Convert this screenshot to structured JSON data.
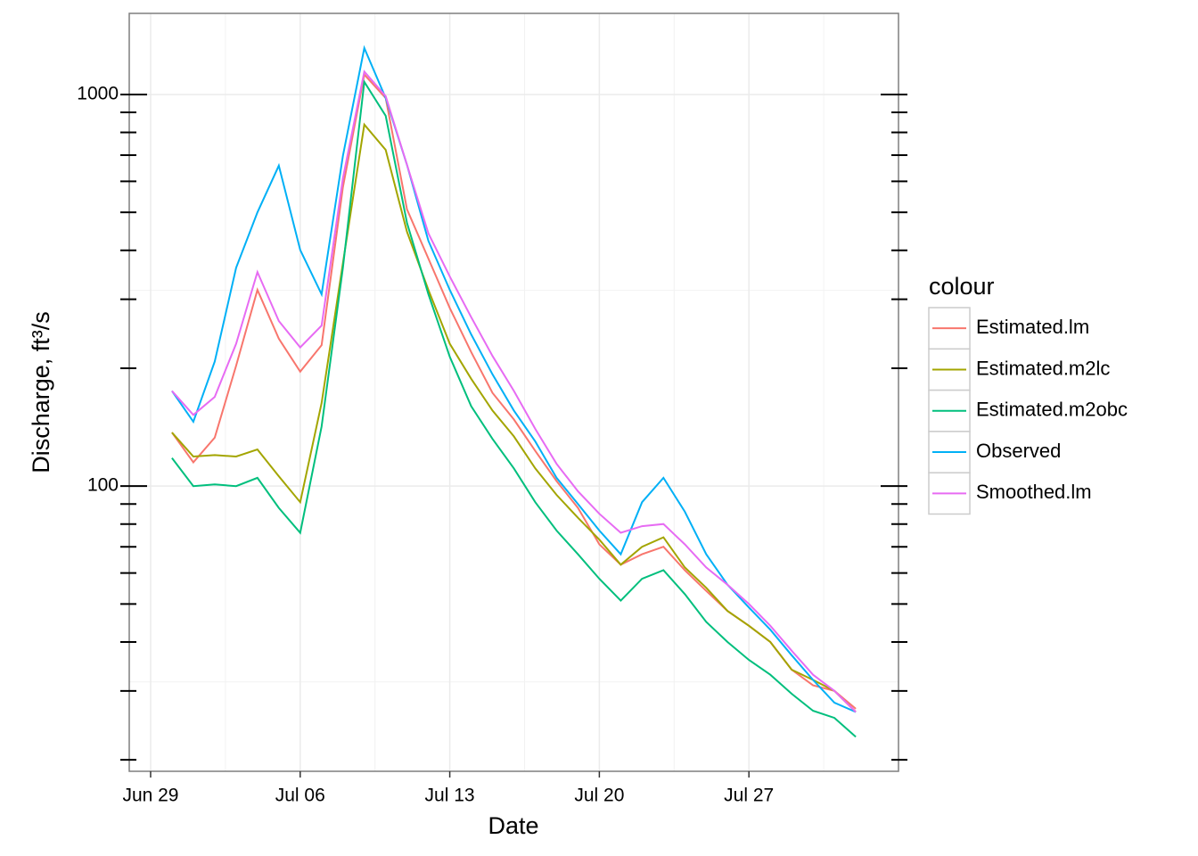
{
  "chart_data": {
    "type": "line",
    "xlabel": "Date",
    "ylabel": "Discharge, ft³/s",
    "legend_title": "colour",
    "legend_position": "right",
    "log_y": true,
    "grid": true,
    "x": [
      "Jun 30",
      "Jul 01",
      "Jul 02",
      "Jul 03",
      "Jul 04",
      "Jul 05",
      "Jul 06",
      "Jul 07",
      "Jul 08",
      "Jul 09",
      "Jul 10",
      "Jul 11",
      "Jul 12",
      "Jul 13",
      "Jul 14",
      "Jul 15",
      "Jul 16",
      "Jul 17",
      "Jul 18",
      "Jul 19",
      "Jul 20",
      "Jul 21",
      "Jul 22",
      "Jul 23",
      "Jul 24",
      "Jul 25",
      "Jul 26",
      "Jul 27",
      "Jul 28",
      "Jul 29",
      "Jul 30",
      "Jul 31",
      "Aug 01"
    ],
    "xlim": [
      "Jun 28",
      "Aug 03"
    ],
    "xticks": [
      "Jun 29",
      "Jul 06",
      "Jul 13",
      "Jul 20",
      "Jul 27"
    ],
    "ylim": [
      18.7,
      1611
    ],
    "yticks": [
      100,
      1000
    ],
    "yminor_ticks": [
      20,
      30,
      40,
      50,
      60,
      70,
      80,
      90,
      200,
      300,
      400,
      500,
      600,
      700,
      800,
      900
    ],
    "series": [
      {
        "name": "Estimated.lm",
        "color": "#F8766D",
        "values": [
          137,
          115,
          133,
          203,
          317,
          238,
          196,
          229,
          580,
          1124,
          979,
          509,
          381,
          285,
          220,
          173,
          148,
          123,
          103,
          88,
          71,
          63,
          67,
          70,
          61,
          54,
          48,
          44,
          40,
          34,
          31,
          30,
          27
        ]
      },
      {
        "name": "Estimated.m2lc",
        "color": "#A3A500",
        "values": [
          137,
          119,
          120,
          119,
          124,
          106,
          91,
          163,
          371,
          838,
          722,
          446,
          317,
          231,
          188,
          156,
          134,
          111,
          95,
          83,
          73,
          63,
          70,
          74,
          62,
          55,
          48,
          44,
          40,
          34,
          32,
          30,
          26.5
        ]
      },
      {
        "name": "Estimated.m2obc",
        "color": "#00BF7D",
        "values": [
          118,
          100,
          101,
          100,
          105,
          88,
          76,
          142,
          361,
          1077,
          882,
          470,
          309,
          214,
          160,
          132,
          111,
          91,
          77,
          67,
          58,
          51,
          58,
          61,
          53,
          45,
          40,
          36,
          33,
          29.5,
          26.7,
          25.6,
          22.9
        ]
      },
      {
        "name": "Observed",
        "color": "#00B0F6",
        "values": [
          175,
          146,
          208,
          361,
          500,
          658,
          401,
          309,
          697,
          1314,
          979,
          661,
          423,
          317,
          244,
          193,
          156,
          130,
          105,
          90,
          77,
          67,
          91,
          105,
          86,
          67,
          56,
          49,
          43,
          37,
          32,
          28,
          26.5
        ]
      },
      {
        "name": "Smoothed.lm",
        "color": "#E76BF3",
        "values": [
          175,
          152,
          169,
          231,
          352,
          264,
          226,
          257,
          611,
          1144,
          990,
          661,
          442,
          343,
          270,
          215,
          175,
          140,
          114,
          97,
          85,
          76,
          79,
          80,
          71,
          62,
          56,
          50,
          44,
          38,
          33,
          30,
          26.5
        ]
      }
    ]
  }
}
